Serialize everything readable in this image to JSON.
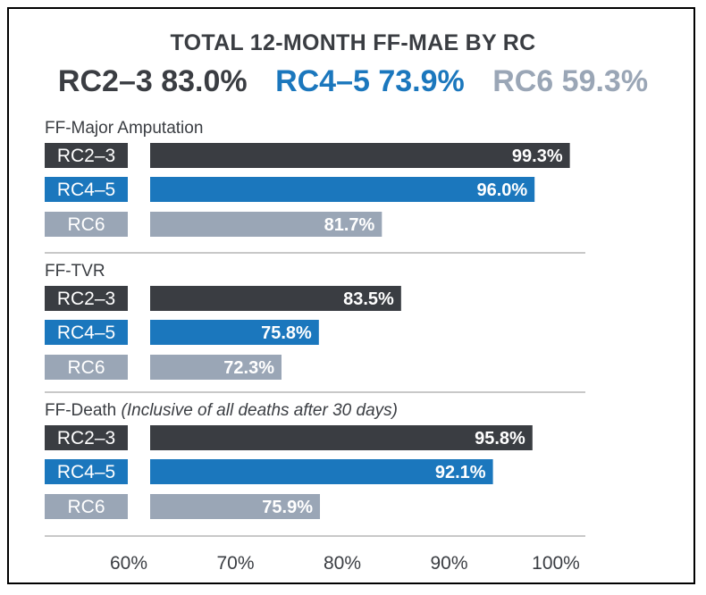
{
  "colors": {
    "RC2-3": "#3a3d42",
    "RC4-5": "#1b77bd",
    "RC6": "#9aa6b6",
    "separator": "#c8c8c8",
    "tick_text": "#3a3d42"
  },
  "chart_data": {
    "type": "bar",
    "orientation": "horizontal",
    "title": "TOTAL 12-MONTH FF-MAE BY RC",
    "totals": [
      {
        "group": "RC2–3",
        "value": 83.0,
        "label": "RC2–3 83.0%",
        "color_key": "RC2-3"
      },
      {
        "group": "RC4–5",
        "value": 73.9,
        "label": "RC4–5 73.9%",
        "color_key": "RC4-5"
      },
      {
        "group": "RC6",
        "value": 59.3,
        "label": "RC6 59.3%",
        "color_key": "RC6"
      }
    ],
    "panels": [
      {
        "title": "FF-Major Amputation",
        "title_note": "",
        "bars": [
          {
            "category": "RC2–3",
            "value": 99.3,
            "label": "99.3%",
            "color_key": "RC2-3"
          },
          {
            "category": "RC4–5",
            "value": 96.0,
            "label": "96.0%",
            "color_key": "RC4-5"
          },
          {
            "category": "RC6",
            "value": 81.7,
            "label": "81.7%",
            "color_key": "RC6"
          }
        ]
      },
      {
        "title": "FF-TVR",
        "title_note": "",
        "bars": [
          {
            "category": "RC2–3",
            "value": 83.5,
            "label": "83.5%",
            "color_key": "RC2-3"
          },
          {
            "category": "RC4–5",
            "value": 75.8,
            "label": "75.8%",
            "color_key": "RC4-5"
          },
          {
            "category": "RC6",
            "value": 72.3,
            "label": "72.3%",
            "color_key": "RC6"
          }
        ]
      },
      {
        "title": "FF-Death ",
        "title_note": "(Inclusive of all deaths after 30 days)",
        "bars": [
          {
            "category": "RC2–3",
            "value": 95.8,
            "label": "95.8%",
            "color_key": "RC2-3"
          },
          {
            "category": "RC4–5",
            "value": 92.1,
            "label": "92.1%",
            "color_key": "RC4-5"
          },
          {
            "category": "RC6",
            "value": 75.9,
            "label": "75.9%",
            "color_key": "RC6"
          }
        ]
      }
    ],
    "xlim": [
      60,
      100
    ],
    "xticks": [
      60,
      70,
      80,
      90,
      100
    ],
    "xtick_labels": [
      "60%",
      "70%",
      "80%",
      "90%",
      "100%"
    ],
    "grid": false,
    "legend": "none"
  }
}
